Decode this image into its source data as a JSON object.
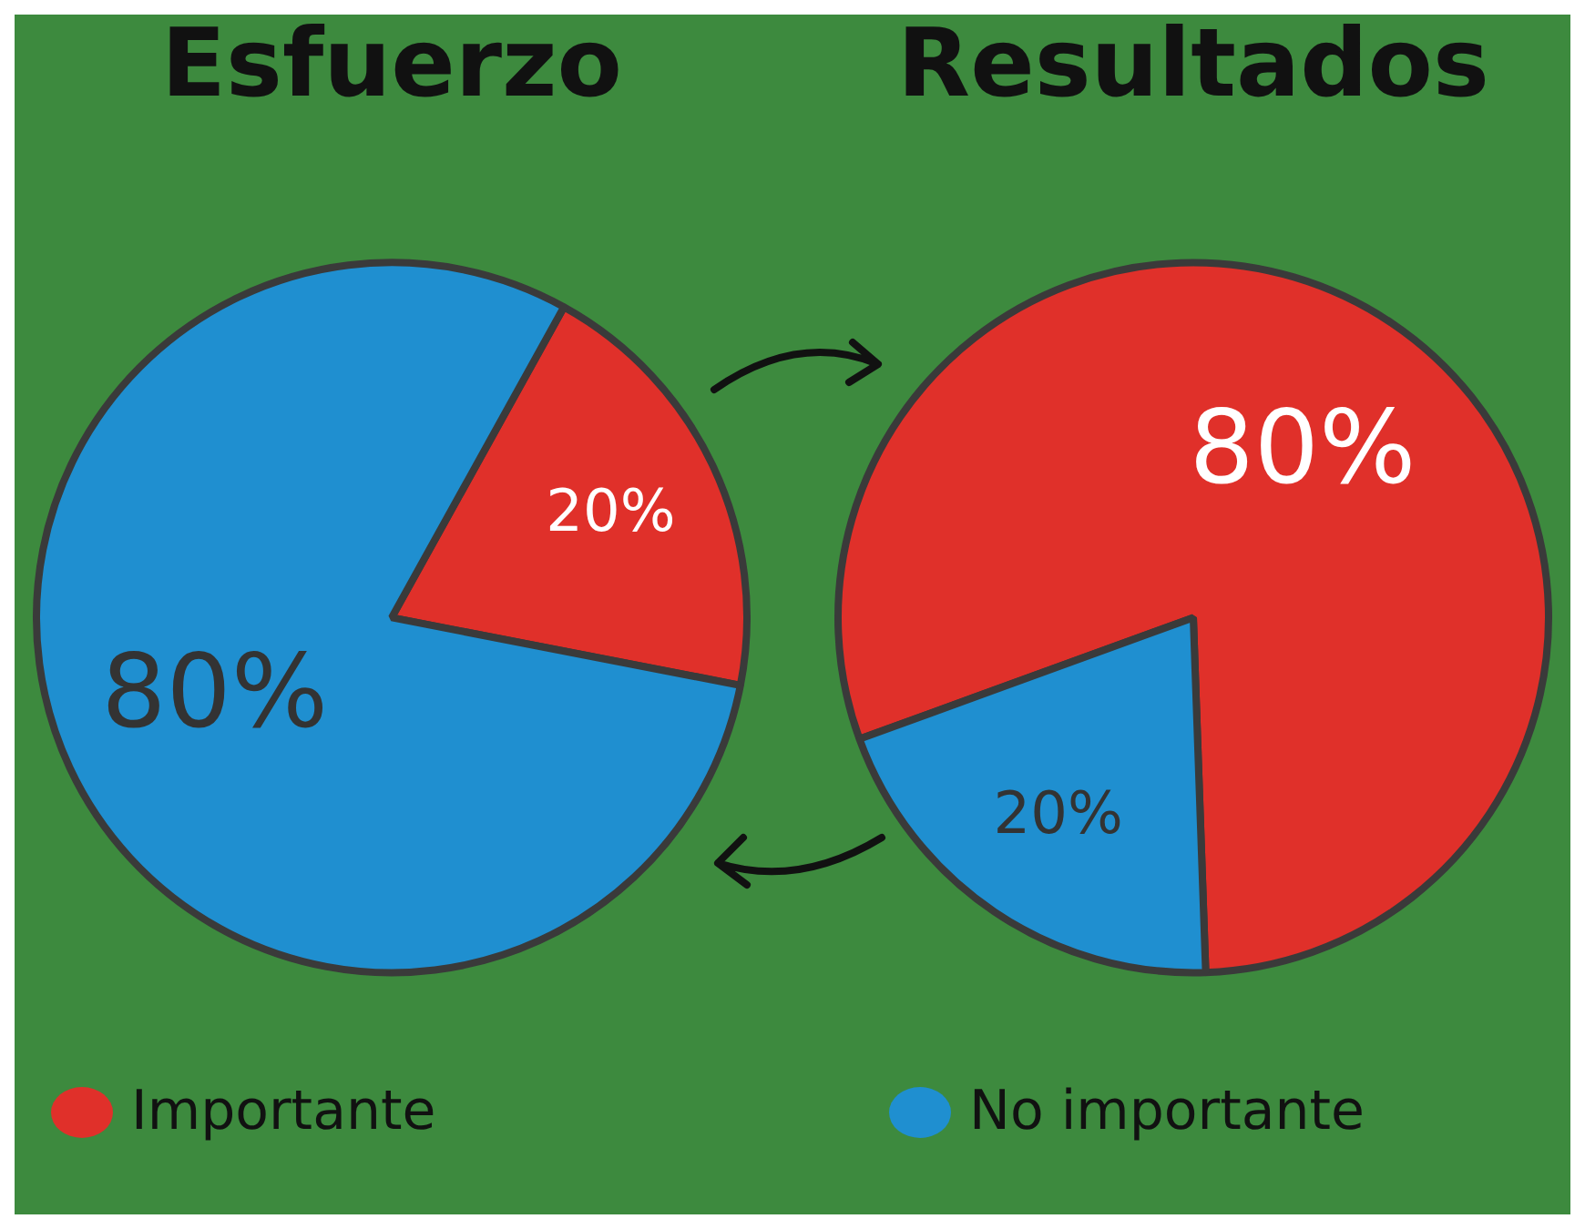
{
  "chart_data": [
    {
      "type": "pie",
      "title": "Esfuerzo",
      "categories": [
        "Importante",
        "No importante"
      ],
      "values": [
        20,
        80
      ],
      "colors": [
        "#e0302a",
        "#1f8fd0"
      ],
      "value_labels": [
        "20%",
        "80%"
      ],
      "legend": "bottom"
    },
    {
      "type": "pie",
      "title": "Resultados",
      "categories": [
        null,
        null
      ],
      "values": [
        80,
        20
      ],
      "colors": [
        "#e0302a",
        "#1f8fd0"
      ],
      "value_labels": [
        "80%",
        "20%"
      ]
    }
  ]
}
